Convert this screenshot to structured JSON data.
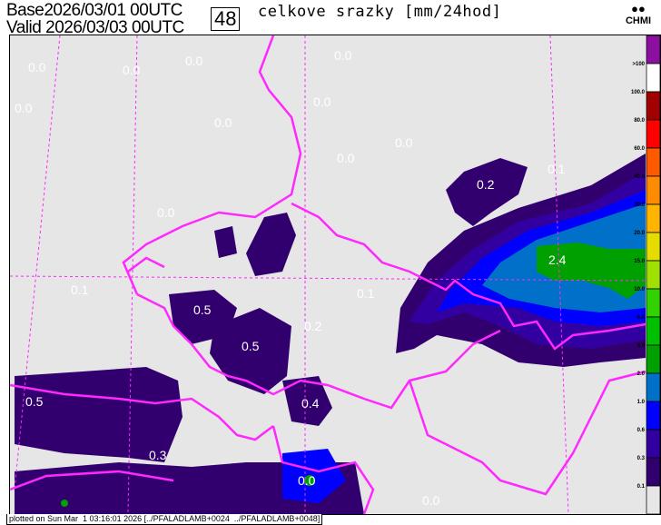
{
  "header": {
    "base_label": "Base",
    "base_time": "2026/03/01 00UTC",
    "valid_label": "Valid",
    "valid_time": "2026/03/03 00UTC",
    "lead_hours": "48",
    "title": "celkove srazky [mm/24hod]",
    "logo_text": "CHMI"
  },
  "footer": {
    "text": "plotted on Sun Mar  1 03:16:01 2026 [../PFALADLAMB+0024  ../PFALADLAMB+0048]"
  },
  "legend": {
    "labels": [
      ">100",
      "100.0",
      "80.0",
      "60.0",
      "40.0",
      "30.0",
      "20.0",
      "15.0",
      "10.0",
      "6.0",
      "4.0",
      "2.0",
      "1.0",
      "0.6",
      "0.3",
      "0.1"
    ],
    "colors": [
      "#8c0fa0",
      "#ffffff",
      "#a00000",
      "#ff0000",
      "#ff5a00",
      "#ff8c00",
      "#ffb400",
      "#e6dc00",
      "#a0e000",
      "#32d200",
      "#00c000",
      "#00a000",
      "#0070c8",
      "#0000ff",
      "#3200a0",
      "#32006e",
      "#e6e6e6"
    ]
  },
  "map": {
    "background_color": "#e6e6e6",
    "border_color": "#ff28ff",
    "values": [
      "0.0",
      "0.0",
      "0.0",
      "0.0",
      "0.0",
      "0.0",
      "0.0",
      "0.0",
      "0.0",
      "0.0",
      "0.1",
      "0.2",
      "0.1",
      "0.5",
      "0.5",
      "0.2",
      "0.5",
      "0.3",
      "0.4",
      "2.4",
      "0.0",
      "0.0",
      "0.1"
    ]
  }
}
